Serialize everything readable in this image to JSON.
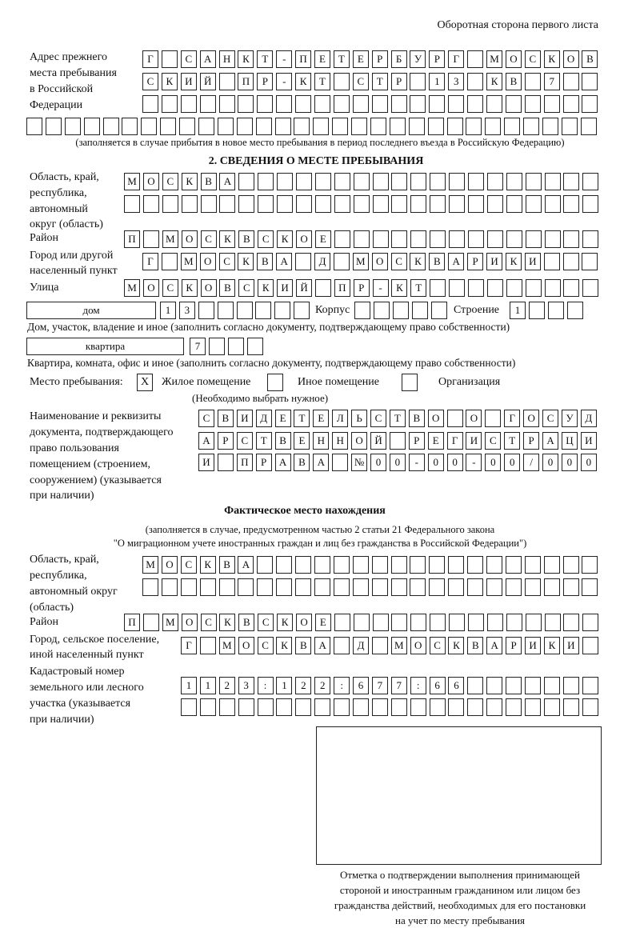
{
  "header": {
    "page_side": "Оборотная сторона первого листа"
  },
  "previous_address": {
    "label": "Адрес прежнего места пребывания в Российской Федерации",
    "label_lines": [
      "Адрес прежнего",
      "места пребывания",
      "в Российской",
      "Федерации"
    ],
    "rows": [
      [
        "Г",
        "",
        "С",
        "А",
        "Н",
        "К",
        "Т",
        "-",
        "П",
        "Е",
        "Т",
        "Е",
        "Р",
        "Б",
        "У",
        "Р",
        "Г",
        "",
        "М",
        "О",
        "С",
        "К",
        "О",
        "В"
      ],
      [
        "С",
        "К",
        "И",
        "Й",
        "",
        "П",
        "Р",
        "-",
        "К",
        "Т",
        "",
        "С",
        "Т",
        "Р",
        "",
        "1",
        "3",
        "",
        "К",
        "В",
        "",
        "7",
        "",
        ""
      ],
      [
        "",
        "",
        "",
        "",
        "",
        "",
        "",
        "",
        "",
        "",
        "",
        "",
        "",
        "",
        "",
        "",
        "",
        "",
        "",
        "",
        "",
        "",
        "",
        ""
      ],
      [
        "",
        "",
        "",
        "",
        "",
        "",
        "",
        "",
        "",
        "",
        "",
        "",
        "",
        "",
        "",
        "",
        "",
        "",
        "",
        "",
        "",
        "",
        "",
        "",
        "",
        "",
        "",
        "",
        "",
        ""
      ]
    ],
    "note": "(заполняется в случае прибытия в новое место пребывания в период последнего въезда в Российскую Федерацию)"
  },
  "section2": {
    "title": "2. СВЕДЕНИЯ О МЕСТЕ ПРЕБЫВАНИЯ",
    "region": {
      "label_lines": [
        "Область, край,",
        "республика,",
        "автономный",
        "округ (область)"
      ],
      "rows": [
        [
          "М",
          "О",
          "С",
          "К",
          "В",
          "А",
          "",
          "",
          "",
          "",
          "",
          "",
          "",
          "",
          "",
          "",
          "",
          "",
          "",
          "",
          "",
          "",
          "",
          "",
          ""
        ],
        [
          "",
          "",
          "",
          "",
          "",
          "",
          "",
          "",
          "",
          "",
          "",
          "",
          "",
          "",
          "",
          "",
          "",
          "",
          "",
          "",
          "",
          "",
          "",
          "",
          ""
        ]
      ]
    },
    "district": {
      "label": "Район",
      "rows": [
        [
          "П",
          "",
          "М",
          "О",
          "С",
          "К",
          "В",
          "С",
          "К",
          "О",
          "Е",
          "",
          "",
          "",
          "",
          "",
          "",
          "",
          "",
          "",
          "",
          "",
          "",
          "",
          ""
        ]
      ]
    },
    "city": {
      "label_lines": [
        "Город или другой",
        "населенный пункт"
      ],
      "rows": [
        [
          "Г",
          "",
          "М",
          "О",
          "С",
          "К",
          "В",
          "А",
          "",
          "Д",
          "",
          "М",
          "О",
          "С",
          "К",
          "В",
          "А",
          "Р",
          "И",
          "К",
          "И",
          "",
          "",
          ""
        ]
      ]
    },
    "street": {
      "label": "Улица",
      "rows": [
        [
          "М",
          "О",
          "С",
          "К",
          "О",
          "В",
          "С",
          "К",
          "И",
          "Й",
          "",
          "П",
          "Р",
          "-",
          "К",
          "Т",
          "",
          "",
          "",
          "",
          "",
          "",
          "",
          "",
          ""
        ]
      ]
    },
    "house": {
      "type": "дом",
      "cells": [
        "1",
        "3",
        "",
        "",
        "",
        "",
        "",
        ""
      ],
      "korpus_label": "Корпус",
      "korpus_cells": [
        "",
        "",
        "",
        "",
        ""
      ],
      "building_label": "Строение",
      "building_cells": [
        "1",
        "",
        "",
        ""
      ],
      "note": "Дом, участок, владение и иное (заполнить согласно документу, подтверждающему право собственности)"
    },
    "apartment": {
      "type": "квартира",
      "cells": [
        "7",
        "",
        "",
        ""
      ],
      "note": "Квартира, комната, офис и иное (заполнить согласно документу, подтверждающему право собственности)"
    },
    "place_type": {
      "label": "Место пребывания:",
      "options": [
        {
          "label": "Жилое помещение",
          "mark": "X",
          "checked": true
        },
        {
          "label": "Иное помещение",
          "mark": "",
          "checked": false
        },
        {
          "label": "Организация",
          "mark": "",
          "checked": false
        }
      ],
      "hint": "(Необходимо выбрать нужное)"
    },
    "document": {
      "label_lines": [
        "Наименование и реквизиты",
        "документа, подтверждающего",
        "право пользования",
        "помещением (строением,",
        "сооружением) (указывается",
        "при наличии)"
      ],
      "rows": [
        [
          "С",
          "В",
          "И",
          "Д",
          "Е",
          "Т",
          "Е",
          "Л",
          "Ь",
          "С",
          "Т",
          "В",
          "О",
          "",
          "О",
          "",
          "Г",
          "О",
          "С",
          "У",
          "Д"
        ],
        [
          "А",
          "Р",
          "С",
          "Т",
          "В",
          "Е",
          "Н",
          "Н",
          "О",
          "Й",
          "",
          "Р",
          "Е",
          "Г",
          "И",
          "С",
          "Т",
          "Р",
          "А",
          "Ц",
          "И"
        ],
        [
          "И",
          "",
          "П",
          "Р",
          "А",
          "В",
          "А",
          "",
          "№",
          "0",
          "0",
          "-",
          "0",
          "0",
          "-",
          "0",
          "0",
          "/",
          "0",
          "0",
          "0"
        ]
      ]
    }
  },
  "actual": {
    "title": "Фактическое место нахождения",
    "note_lines": [
      "(заполняется в случае, предусмотренном частью 2 статьи 21 Федерального закона",
      "\"О миграционном учете иностранных граждан и лиц без гражданства в Российской Федерации\")"
    ],
    "region": {
      "label_lines": [
        "Область, край,",
        "республика,",
        "автономный округ",
        "(область)"
      ],
      "rows": [
        [
          "М",
          "О",
          "С",
          "К",
          "В",
          "А",
          "",
          "",
          "",
          "",
          "",
          "",
          "",
          "",
          "",
          "",
          "",
          "",
          "",
          "",
          "",
          "",
          "",
          ""
        ],
        [
          "",
          "",
          "",
          "",
          "",
          "",
          "",
          "",
          "",
          "",
          "",
          "",
          "",
          "",
          "",
          "",
          "",
          "",
          "",
          "",
          "",
          "",
          "",
          ""
        ]
      ]
    },
    "district": {
      "label": "Район",
      "rows": [
        [
          "П",
          "",
          "М",
          "О",
          "С",
          "К",
          "В",
          "С",
          "К",
          "О",
          "Е",
          "",
          "",
          "",
          "",
          "",
          "",
          "",
          "",
          "",
          "",
          "",
          "",
          "",
          ""
        ]
      ]
    },
    "city": {
      "label_lines": [
        "Город, сельское поселение,",
        "иной населенный пункт"
      ],
      "rows": [
        [
          "Г",
          "",
          "М",
          "О",
          "С",
          "К",
          "В",
          "А",
          "",
          "Д",
          "",
          "М",
          "О",
          "С",
          "К",
          "В",
          "А",
          "Р",
          "И",
          "К",
          "И",
          ""
        ]
      ]
    },
    "cadastral": {
      "label_lines": [
        "Кадастровый номер",
        "земельного или лесного",
        "участка (указывается",
        "при наличии)"
      ],
      "rows": [
        [
          "1",
          "1",
          "2",
          "3",
          ":",
          "1",
          "2",
          "2",
          ":",
          "6",
          "7",
          "7",
          ":",
          "6",
          "6",
          "",
          "",
          "",
          "",
          "",
          "",
          ""
        ],
        [
          "",
          "",
          "",
          "",
          "",
          "",
          "",
          "",
          "",
          "",
          "",
          "",
          "",
          "",
          "",
          "",
          "",
          "",
          "",
          "",
          "",
          ""
        ]
      ]
    }
  },
  "confirmation": {
    "caption_lines": [
      "Отметка о подтверждении выполнения принимающей",
      "стороной и иностранным гражданином или лицом без",
      "гражданства действий, необходимых для его постановки",
      "на учет по месту пребывания"
    ]
  }
}
